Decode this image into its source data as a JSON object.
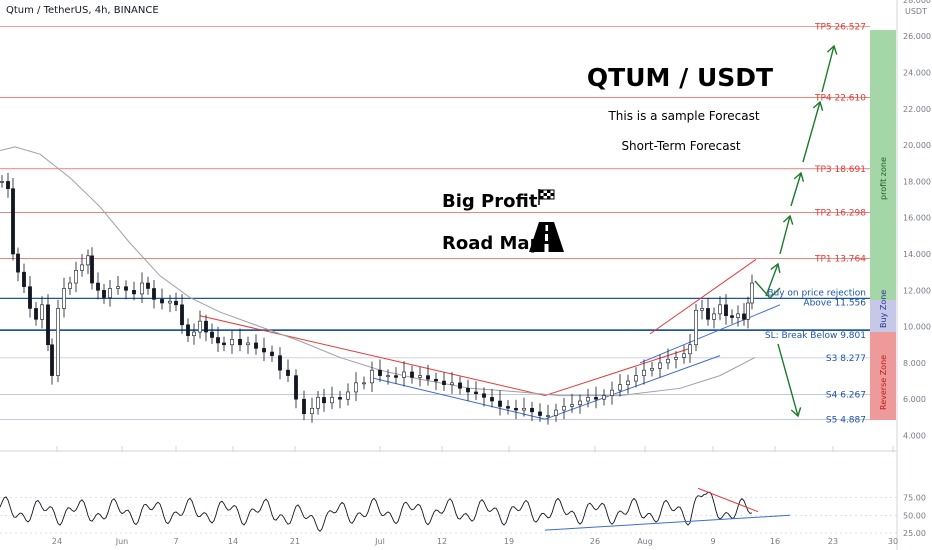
{
  "header": {
    "symbol": "Qtum / TetherUS, 4h, BINANCE",
    "currency": "USDT"
  },
  "title": {
    "main": "QTUM / USDT",
    "line1": "This is a sample Forecast",
    "line2": "Short-Term Forecast"
  },
  "roadmap": {
    "line1": "Big Profit",
    "line2": "Road Map"
  },
  "zones": {
    "profit": "profit zone",
    "buy": "Buy Zone",
    "reverse": "Reverse Zone"
  },
  "colors": {
    "tp": "#e53935",
    "support": "#1e53a6",
    "profit_zone": "#a5d6a7",
    "buy_zone": "#c5c8e6",
    "reverse_zone": "#ef9a9a",
    "arrow": "#1b7a2a",
    "channel_red": "#e53935",
    "channel_blue": "#3f6bd3"
  },
  "chart_data": [
    {
      "type": "candlestick",
      "y_axis_ticks": [
        "28.000",
        "26.000",
        "24.000",
        "22.000",
        "20.000",
        "18.000",
        "16.000",
        "14.000",
        "12.000",
        "10.000",
        "8.000",
        "6.000",
        "4.000"
      ],
      "y_axis_values": [
        28,
        26,
        24,
        22,
        20,
        18,
        16,
        14,
        12,
        10,
        8,
        6,
        4
      ],
      "x_axis_ticks": [
        "24",
        "Jun",
        "7",
        "14",
        "21",
        "Jul",
        "12",
        "19",
        "26",
        "Aug",
        "9",
        "16",
        "23",
        "30"
      ],
      "ylim": [
        3.5,
        28.4
      ],
      "levels": [
        {
          "label": "TP5 26.527",
          "value": 26.527,
          "kind": "tp"
        },
        {
          "label": "TP4 22.610",
          "value": 22.61,
          "kind": "tp"
        },
        {
          "label": "TP3 18.691",
          "value": 18.691,
          "kind": "tp"
        },
        {
          "label": "TP2 16.298",
          "value": 16.298,
          "kind": "tp"
        },
        {
          "label": "TP1 13.764",
          "value": 13.764,
          "kind": "tp"
        },
        {
          "label": "Buy on price rejection",
          "value": 11.556,
          "kind": "note"
        },
        {
          "label": "Above 11.556",
          "value": 11.556,
          "kind": "support"
        },
        {
          "label": "SL: Break Below 9.801",
          "value": 9.801,
          "kind": "sl"
        },
        {
          "label": "S3 8.277",
          "value": 8.277,
          "kind": "support"
        },
        {
          "label": "S4 6.267",
          "value": 6.267,
          "kind": "support"
        },
        {
          "label": "S5 4.887",
          "value": 4.887,
          "kind": "support"
        }
      ]
    },
    {
      "type": "line",
      "name": "oscillator",
      "y_axis_ticks": [
        "75.00",
        "50.00",
        "25.00"
      ],
      "y_axis_values": [
        75,
        50,
        25
      ],
      "ylim": [
        20,
        95
      ]
    }
  ]
}
